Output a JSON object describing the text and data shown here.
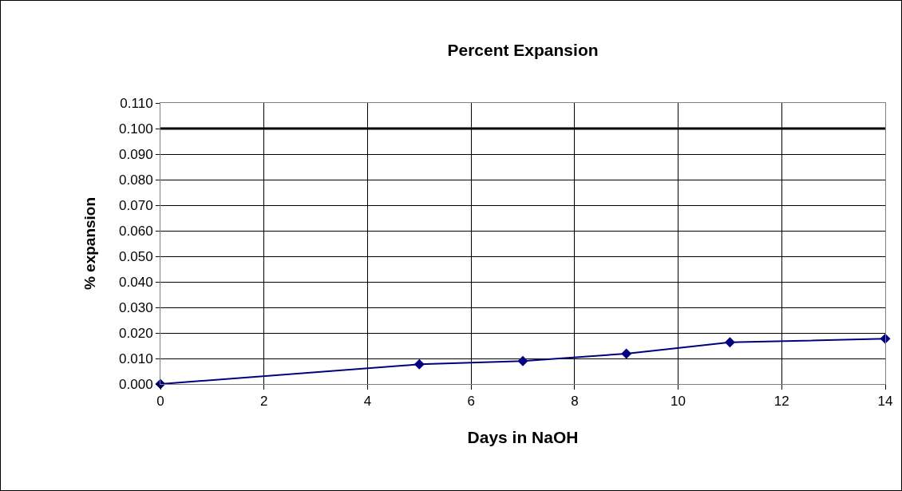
{
  "chart_data": {
    "type": "line",
    "title": "Percent Expansion",
    "xlabel": "Days in NaOH",
    "ylabel": "% expansion",
    "x": [
      0,
      5,
      7,
      9,
      11,
      14
    ],
    "series": [
      {
        "color": "#000080",
        "values": [
          0,
          0.0077,
          0.009,
          0.0119,
          0.0163,
          0.0177
        ]
      }
    ],
    "xlim": [
      0,
      14
    ],
    "xticks": [
      0,
      2,
      4,
      6,
      8,
      10,
      12,
      14
    ],
    "ylim": [
      0,
      0.11
    ],
    "yticks": [
      {
        "value": 0,
        "label": "0.000"
      },
      {
        "value": 0.01,
        "label": "0.010"
      },
      {
        "value": 0.02,
        "label": "0.020"
      },
      {
        "value": 0.03,
        "label": "0.030"
      },
      {
        "value": 0.04,
        "label": "0.040"
      },
      {
        "value": 0.05,
        "label": "0.050"
      },
      {
        "value": 0.06,
        "label": "0.060"
      },
      {
        "value": 0.07,
        "label": "0.070"
      },
      {
        "value": 0.08,
        "label": "0.080"
      },
      {
        "value": 0.09,
        "label": "0.090"
      },
      {
        "value": 0.1,
        "label": "0.100"
      },
      {
        "value": 0.11,
        "label": "0.110"
      }
    ],
    "ref_lines": [
      {
        "axis": "y",
        "value": 0.1,
        "color": "#000000",
        "line_style": "solid"
      }
    ],
    "grid": true,
    "marker": "diamond",
    "line_style": "solid"
  }
}
